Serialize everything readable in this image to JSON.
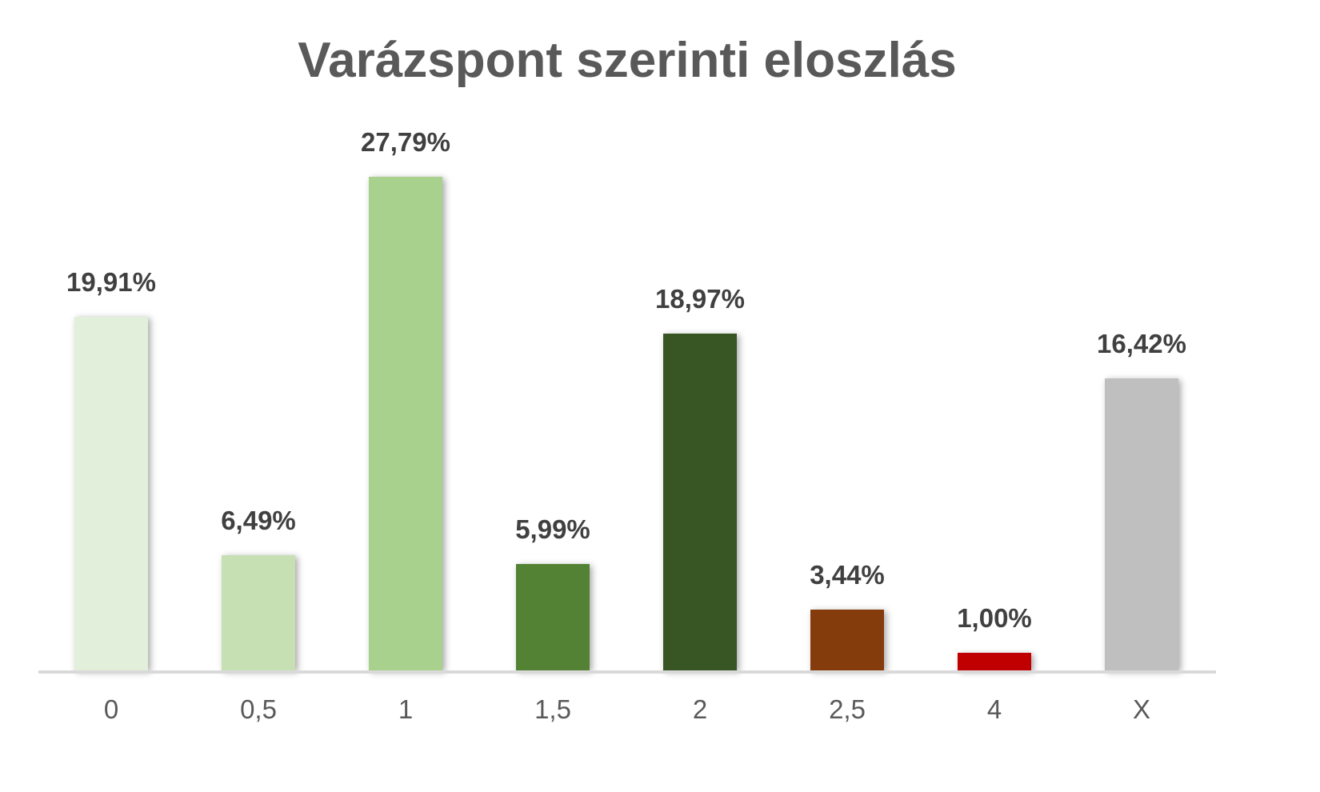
{
  "chart_data": {
    "type": "bar",
    "title": "Varázspont szerinti eloszlás",
    "xlabel": "",
    "ylabel": "",
    "categories": [
      "0",
      "0,5",
      "1",
      "1,5",
      "2",
      "2,5",
      "4",
      "X"
    ],
    "values": [
      19.91,
      6.49,
      27.79,
      5.99,
      18.97,
      3.44,
      1.0,
      16.42
    ],
    "value_labels": [
      "19,91%",
      "6,49%",
      "27,79%",
      "5,99%",
      "18,97%",
      "3,44%",
      "1,00%",
      "16,42%"
    ],
    "colors": [
      "#e2efda",
      "#c6e0b4",
      "#a9d18e",
      "#548235",
      "#375623",
      "#843c0c",
      "#c00000",
      "#bfbfbf"
    ],
    "unit": "%",
    "ylim": [
      0,
      28
    ],
    "grid": false,
    "legend": "none",
    "y_axis_visible": false
  }
}
